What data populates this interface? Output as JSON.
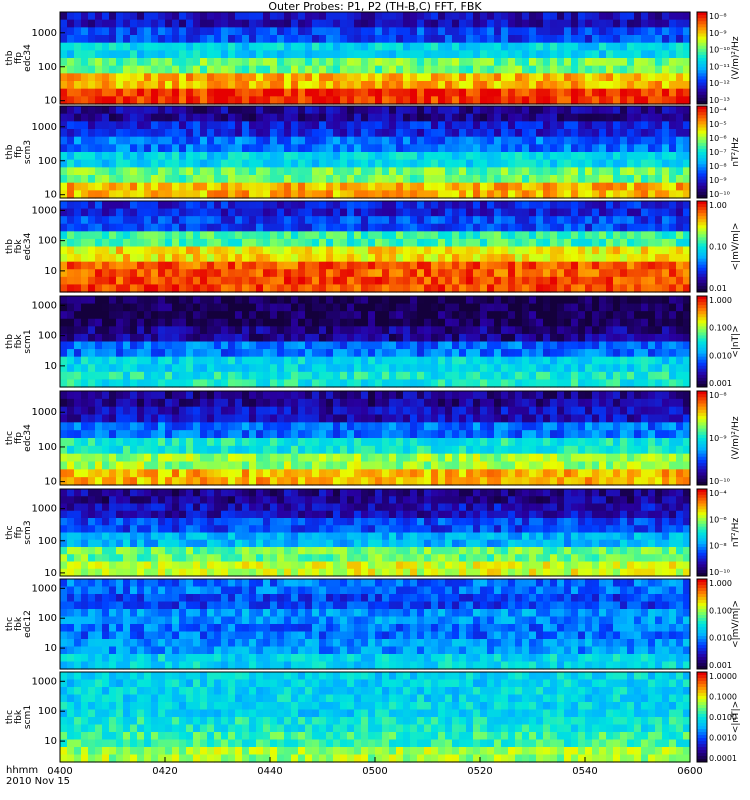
{
  "title": "Outer Probes: P1, P2 (TH-B,C) FFT, FBK",
  "footer": {
    "time_label": "hhmm",
    "date": "2010 Nov 15"
  },
  "chart_data": [
    {
      "type": "heatmap",
      "panel_label": [
        "thb",
        "ffp",
        "edc34"
      ],
      "yscale": "log",
      "ylim": [
        8,
        4096
      ],
      "yticks": [
        "10",
        "100",
        "1000"
      ],
      "colorbar": {
        "label": "(V/m)²/Hz",
        "ticks": [
          "10⁻¹³",
          "10⁻¹²",
          "10⁻¹¹",
          "10⁻¹⁰",
          "10⁻⁹",
          "10⁻⁸"
        ]
      }
    },
    {
      "type": "heatmap",
      "panel_label": [
        "thb",
        "ffp",
        "scm3"
      ],
      "yscale": "log",
      "ylim": [
        8,
        4096
      ],
      "yticks": [
        "10",
        "100",
        "1000"
      ],
      "colorbar": {
        "label": "nT²/Hz",
        "ticks": [
          "10⁻¹⁰",
          "10⁻⁹",
          "10⁻⁸",
          "10⁻⁷",
          "10⁻⁶",
          "10⁻⁵",
          "10⁻⁴"
        ]
      }
    },
    {
      "type": "heatmap",
      "panel_label": [
        "thb",
        "fbk",
        "edc34"
      ],
      "yscale": "log",
      "ylim": [
        2,
        2048
      ],
      "yticks": [
        "10",
        "100",
        "1000"
      ],
      "colorbar": {
        "label": "<|mV/m|>",
        "ticks": [
          "0.01",
          "0.10",
          "1.00"
        ]
      }
    },
    {
      "type": "heatmap",
      "panel_label": [
        "thb",
        "fbk",
        "scm1"
      ],
      "yscale": "log",
      "ylim": [
        2,
        2048
      ],
      "yticks": [
        "10",
        "100",
        "1000"
      ],
      "colorbar": {
        "label": "<|nT|>",
        "ticks": [
          "0.001",
          "0.010",
          "0.100",
          "1.000"
        ]
      }
    },
    {
      "type": "heatmap",
      "panel_label": [
        "thc",
        "ffp",
        "edc34"
      ],
      "yscale": "log",
      "ylim": [
        8,
        4096
      ],
      "yticks": [
        "10",
        "100",
        "1000"
      ],
      "colorbar": {
        "label": "(V/m)²/Hz",
        "ticks": [
          "10⁻¹⁰",
          "10⁻⁹",
          "10⁻⁸"
        ]
      }
    },
    {
      "type": "heatmap",
      "panel_label": [
        "thc",
        "ffp",
        "scm3"
      ],
      "yscale": "log",
      "ylim": [
        8,
        4096
      ],
      "yticks": [
        "10",
        "100",
        "1000"
      ],
      "colorbar": {
        "label": "nT²/Hz",
        "ticks": [
          "10⁻¹⁰",
          "10⁻⁸",
          "10⁻⁶",
          "10⁻⁴"
        ]
      }
    },
    {
      "type": "heatmap",
      "panel_label": [
        "thc",
        "fbk",
        "edc12"
      ],
      "yscale": "log",
      "ylim": [
        2,
        2048
      ],
      "yticks": [
        "10",
        "100",
        "1000"
      ],
      "colorbar": {
        "label": "<|mV/m|>",
        "ticks": [
          "0.001",
          "0.010",
          "0.100",
          "1.000"
        ]
      }
    },
    {
      "type": "heatmap",
      "panel_label": [
        "thc",
        "fbk",
        "scm1"
      ],
      "yscale": "log",
      "ylim": [
        2,
        2048
      ],
      "yticks": [
        "10",
        "100",
        "1000"
      ],
      "xticks": [
        "0400",
        "0420",
        "0440",
        "0500",
        "0520",
        "0540",
        "0600"
      ],
      "colorbar": {
        "label": "<|nT|>",
        "ticks": [
          "0.0001",
          "0.0010",
          "0.0100",
          "0.1000",
          "1.0000"
        ]
      }
    }
  ]
}
